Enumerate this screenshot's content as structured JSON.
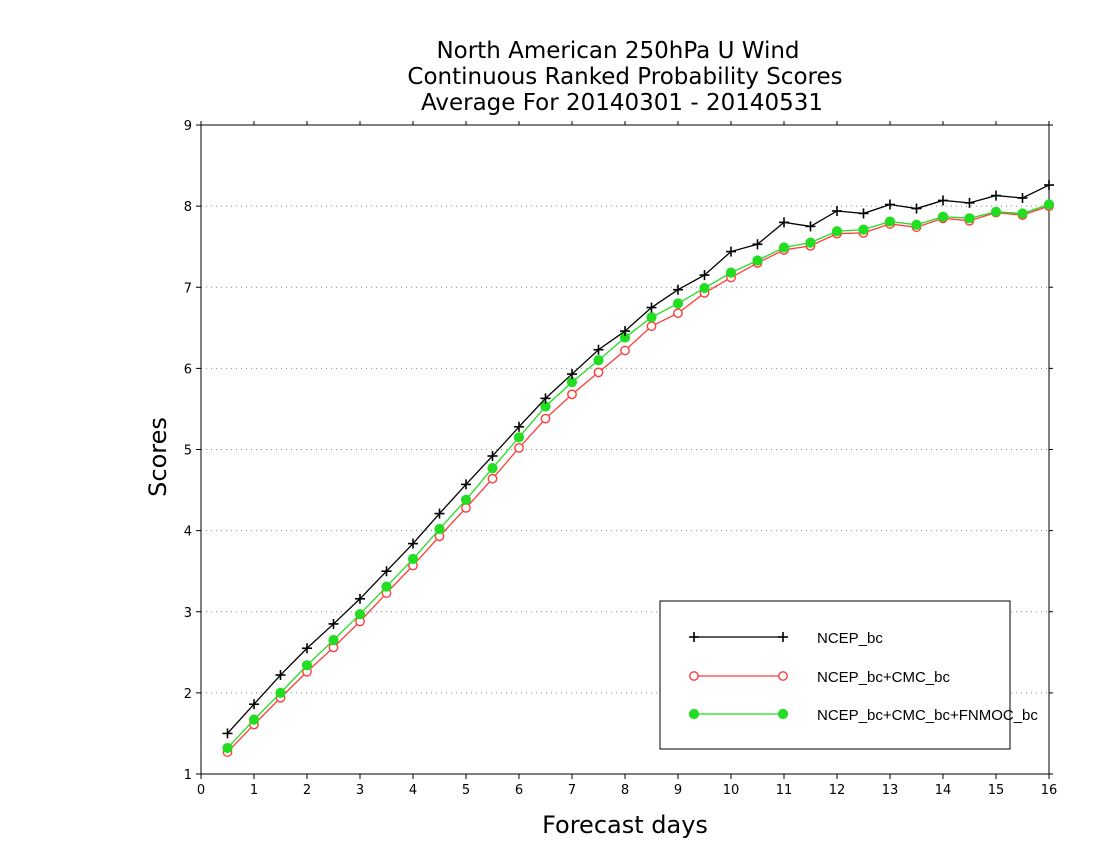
{
  "chart_data": {
    "type": "line",
    "title": [
      "North American 250hPa U Wind",
      "Continuous Ranked Probability Scores",
      "Average For 20140301 - 20140531"
    ],
    "xlabel": "Forecast days",
    "ylabel": "Scores",
    "xlim": [
      0,
      16
    ],
    "ylim": [
      1,
      9
    ],
    "xticks": [
      "0",
      "1",
      "2",
      "3",
      "4",
      "5",
      "6",
      "7",
      "8",
      "9",
      "10",
      "11",
      "12",
      "13",
      "14",
      "15",
      "16"
    ],
    "yticks": [
      "1",
      "2",
      "3",
      "4",
      "5",
      "6",
      "7",
      "8",
      "9"
    ],
    "grid": "horizontal dotted",
    "legend_position": "bottom-right",
    "x": [
      0.5,
      1,
      1.5,
      2,
      2.5,
      3,
      3.5,
      4,
      4.5,
      5,
      5.5,
      6,
      6.5,
      7,
      7.5,
      8,
      8.5,
      9,
      9.5,
      10,
      10.5,
      11,
      11.5,
      12,
      12.5,
      13,
      13.5,
      14,
      14.5,
      15,
      15.5,
      16
    ],
    "series": [
      {
        "name": "NCEP_bc",
        "color": "#000000",
        "marker": "plus",
        "values": [
          1.5,
          1.86,
          2.22,
          2.55,
          2.85,
          3.16,
          3.5,
          3.84,
          4.21,
          4.57,
          4.92,
          5.28,
          5.63,
          5.93,
          6.23,
          6.46,
          6.75,
          6.97,
          7.15,
          7.44,
          7.53,
          7.8,
          7.75,
          7.94,
          7.91,
          8.02,
          7.97,
          8.07,
          8.04,
          8.13,
          8.1,
          8.26
        ]
      },
      {
        "name": "NCEP_bc+CMC_bc",
        "color": "#ff3b3b",
        "marker": "open-circle",
        "values": [
          1.27,
          1.61,
          1.94,
          2.26,
          2.56,
          2.88,
          3.23,
          3.57,
          3.93,
          4.28,
          4.64,
          5.02,
          5.38,
          5.68,
          5.95,
          6.22,
          6.52,
          6.68,
          6.93,
          7.12,
          7.3,
          7.46,
          7.51,
          7.66,
          7.67,
          7.78,
          7.74,
          7.85,
          7.82,
          7.92,
          7.89,
          8.0
        ]
      },
      {
        "name": "NCEP_bc+CMC_bc+FNMOC_bc",
        "color": "#22dd22",
        "marker": "filled-circle",
        "values": [
          1.32,
          1.67,
          2.0,
          2.34,
          2.65,
          2.97,
          3.31,
          3.65,
          4.02,
          4.38,
          4.77,
          5.15,
          5.53,
          5.83,
          6.1,
          6.38,
          6.63,
          6.8,
          6.99,
          7.18,
          7.33,
          7.49,
          7.55,
          7.69,
          7.71,
          7.81,
          7.77,
          7.87,
          7.85,
          7.93,
          7.91,
          8.02
        ]
      }
    ]
  }
}
